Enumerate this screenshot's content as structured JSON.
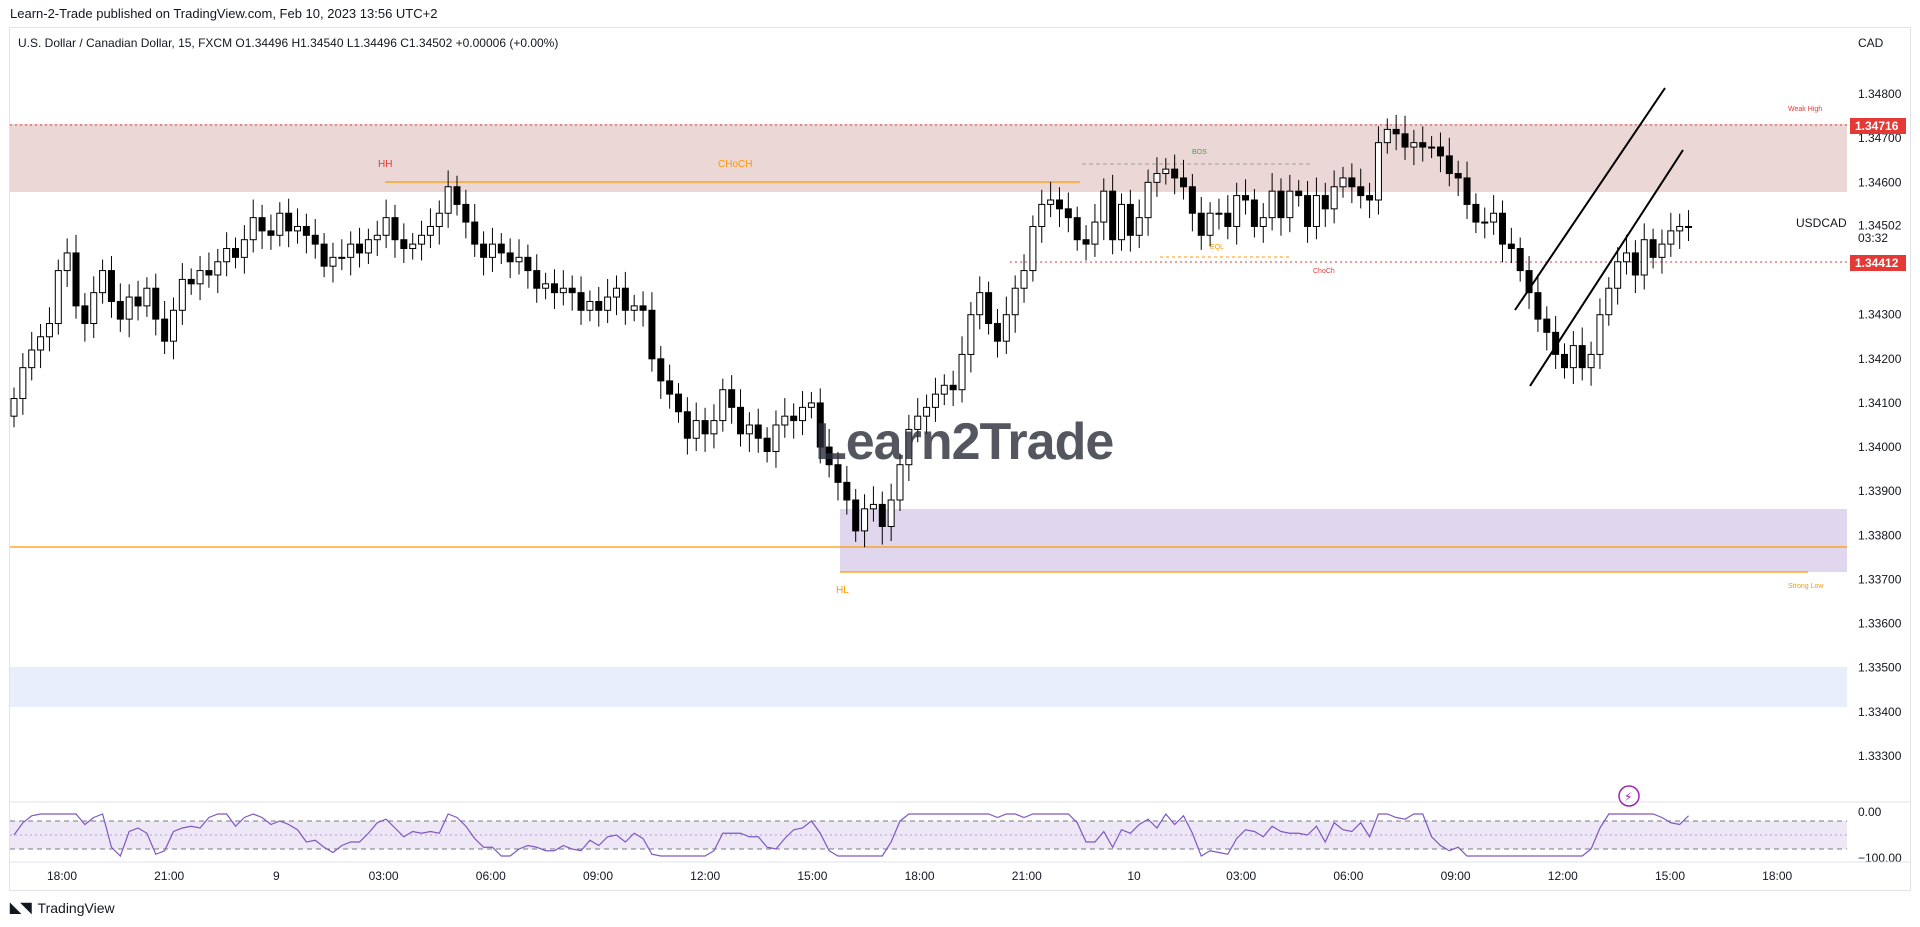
{
  "header": {
    "published": "Learn-2-Trade published on TradingView.com, Feb 10, 2023 13:56 UTC+2",
    "legend": "U.S. Dollar / Canadian Dollar, 15, FXCM  O1.34496  H1.34540  L1.34496  C1.34502  +0.00006 (+0.00%)"
  },
  "watermark": "Learn2Trade",
  "footer": {
    "brand": "TradingView"
  },
  "colors": {
    "bull": "#ffffff",
    "bear": "#000000",
    "supply_zone": "#e6c9c9",
    "demand_zone": "#ddd2ec",
    "level_red": "#e53935",
    "level_orange": "#ff9800",
    "rsi": "#7e57c2"
  },
  "chart_data": {
    "type": "candlestick",
    "symbol": "USDCAD",
    "currency_label": "CAD",
    "countdown": "03:32",
    "ylim": [
      1.332,
      1.349
    ],
    "yticks": [
      "1.34800",
      "1.34700",
      "1.34600",
      "1.34502",
      "1.34300",
      "1.34200",
      "1.34100",
      "1.34000",
      "1.33900",
      "1.33800",
      "1.33700",
      "1.33600",
      "1.33500",
      "1.33400",
      "1.33300"
    ],
    "xticks": [
      "18:00",
      "21:00",
      "9",
      "03:00",
      "06:00",
      "09:00",
      "12:00",
      "15:00",
      "18:00",
      "21:00",
      "10",
      "03:00",
      "06:00",
      "09:00",
      "12:00",
      "15:00",
      "18:00"
    ],
    "price_labels": {
      "weak_high": "1.34716",
      "choch_level": "1.34412",
      "last": "1.34502"
    },
    "annotations": [
      "HH",
      "CHoCH",
      "BOS",
      "EQL",
      "ChoCh",
      "Weak High",
      "HL",
      "Strong Low"
    ],
    "closes": [
      1.3411,
      1.3418,
      1.3422,
      1.3425,
      1.3428,
      1.344,
      1.3444,
      1.3432,
      1.3428,
      1.3435,
      1.344,
      1.3433,
      1.3429,
      1.3434,
      1.3432,
      1.3436,
      1.3429,
      1.3424,
      1.3431,
      1.3438,
      1.3437,
      1.344,
      1.3439,
      1.3442,
      1.3445,
      1.3443,
      1.3447,
      1.3452,
      1.3449,
      1.3448,
      1.3453,
      1.3449,
      1.345,
      1.3448,
      1.3446,
      1.3441,
      1.3443,
      1.3443,
      1.3446,
      1.3444,
      1.3447,
      1.3448,
      1.3452,
      1.3447,
      1.3445,
      1.3446,
      1.3448,
      1.345,
      1.3453,
      1.3459,
      1.3455,
      1.3451,
      1.3446,
      1.3443,
      1.3446,
      1.3444,
      1.3442,
      1.3443,
      1.344,
      1.3436,
      1.3437,
      1.3435,
      1.3436,
      1.3435,
      1.3431,
      1.3433,
      1.3431,
      1.3434,
      1.3436,
      1.3431,
      1.3432,
      1.3431,
      1.342,
      1.3415,
      1.3412,
      1.3408,
      1.3402,
      1.3406,
      1.3403,
      1.3406,
      1.3413,
      1.3409,
      1.3403,
      1.3405,
      1.3402,
      1.3399,
      1.3405,
      1.3407,
      1.3406,
      1.3409,
      1.341,
      1.34,
      1.3396,
      1.3392,
      1.3388,
      1.3381,
      1.3386,
      1.3387,
      1.3382,
      1.3388,
      1.3396,
      1.3404,
      1.3407,
      1.3409,
      1.3412,
      1.3414,
      1.3413,
      1.3421,
      1.343,
      1.3435,
      1.3428,
      1.3424,
      1.343,
      1.3436,
      1.344,
      1.345,
      1.3455,
      1.3456,
      1.3454,
      1.3452,
      1.3447,
      1.3446,
      1.3451,
      1.3458,
      1.3447,
      1.3455,
      1.3448,
      1.3452,
      1.346,
      1.3462,
      1.3463,
      1.3461,
      1.3459,
      1.3453,
      1.3448,
      1.3453,
      1.3453,
      1.345,
      1.3457,
      1.3456,
      1.345,
      1.3452,
      1.3458,
      1.3452,
      1.3458,
      1.3457,
      1.345,
      1.3457,
      1.3454,
      1.3459,
      1.3461,
      1.3459,
      1.3457,
      1.3456,
      1.3469,
      1.3472,
      1.3471,
      1.3468,
      1.3469,
      1.3468,
      1.3468,
      1.3466,
      1.3462,
      1.3461,
      1.3455,
      1.3451,
      1.3451,
      1.3453,
      1.3446,
      1.3445,
      1.344,
      1.3435,
      1.3429,
      1.3426,
      1.3421,
      1.3418,
      1.3423,
      1.3418,
      1.3421,
      1.343,
      1.3436,
      1.3442,
      1.3444,
      1.3439,
      1.3447,
      1.3443,
      1.3446,
      1.3449,
      1.345,
      1.345
    ]
  }
}
